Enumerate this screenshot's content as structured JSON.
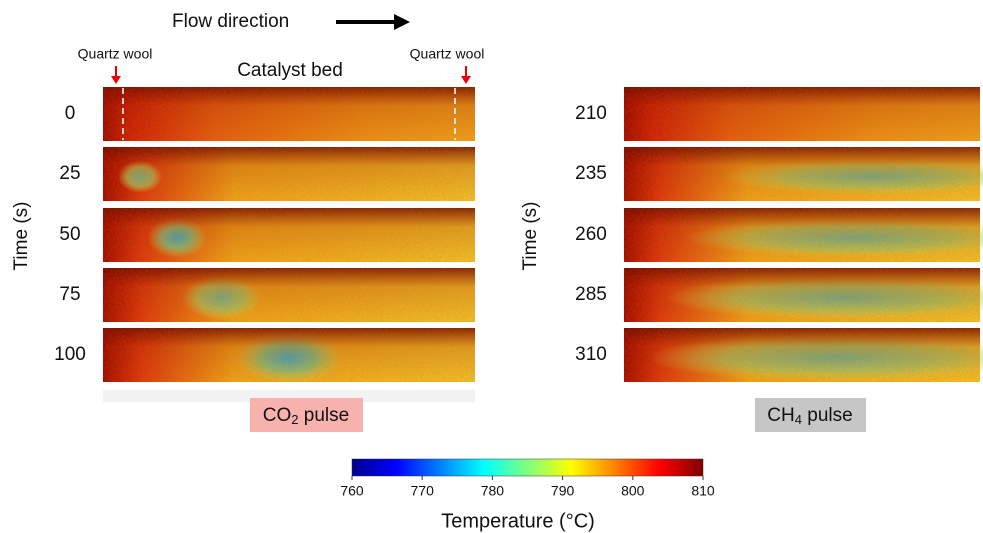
{
  "flow_label": "Flow direction",
  "left_panel": {
    "quartz_wool_left": "Quartz wool",
    "catalyst_bed": "Catalyst bed",
    "quartz_wool_right": "Quartz wool",
    "y_label": "Time (s)",
    "times": [
      "0",
      "25",
      "50",
      "75",
      "100"
    ],
    "pulse": {
      "prefix": "CO",
      "subscript": "2",
      "suffix": " pulse"
    }
  },
  "right_panel": {
    "y_label": "Time (s)",
    "times": [
      "210",
      "235",
      "260",
      "285",
      "310"
    ],
    "pulse": {
      "prefix": "CH",
      "subscript": "4",
      "suffix": " pulse"
    }
  },
  "colorbar": {
    "range": [
      760,
      810
    ],
    "ticks": [
      760,
      770,
      780,
      790,
      800,
      810
    ],
    "label": "Temperature (°C)"
  }
}
